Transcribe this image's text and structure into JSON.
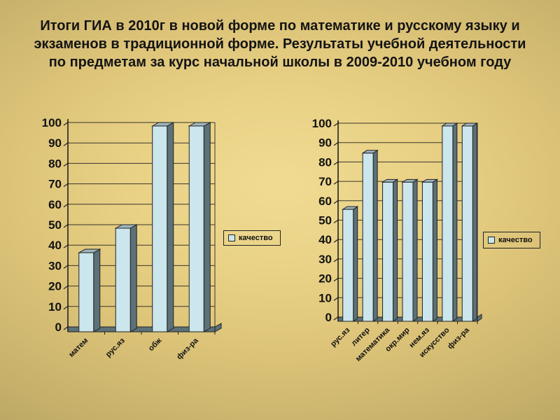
{
  "slide": {
    "title": "Итоги ГИА в 2010г в новой форме по математике и русскому языку и экзаменов в традиционной форме. Результаты учебной деятельности по предметам за курс начальной школы в 2009-2010 учебном году"
  },
  "colors": {
    "background_center": "#EFD98E",
    "background_edge": "#A6965A",
    "bar_front": "#CBE6EC",
    "bar_side": "#5C7178",
    "bar_top": "#9EB5BC",
    "outline": "#222222",
    "grid": "#3A362C",
    "text": "#111111"
  },
  "chart_data": [
    {
      "type": "bar",
      "title": "",
      "xlabel": "",
      "ylabel": "",
      "categories": [
        "матем",
        "рус.яз",
        "обж",
        "физ-ра"
      ],
      "series": [
        {
          "name": "качество",
          "values": [
            38,
            50,
            100,
            100
          ]
        }
      ],
      "ylim": [
        0,
        100
      ],
      "yticks": [
        0,
        10,
        20,
        30,
        40,
        50,
        60,
        70,
        80,
        90,
        100
      ],
      "grid": true,
      "legend_position": "right"
    },
    {
      "type": "bar",
      "title": "",
      "xlabel": "",
      "ylabel": "",
      "categories": [
        "рус.яз",
        "литер",
        "математика",
        "окр.мир",
        "нем.яз",
        "искусство",
        "физ-ра"
      ],
      "series": [
        {
          "name": "качество",
          "values": [
            57,
            86,
            71,
            71,
            71,
            100,
            100
          ]
        }
      ],
      "ylim": [
        0,
        100
      ],
      "yticks": [
        0,
        10,
        20,
        30,
        40,
        50,
        60,
        70,
        80,
        90,
        100
      ],
      "grid": true,
      "legend_position": "right"
    }
  ]
}
